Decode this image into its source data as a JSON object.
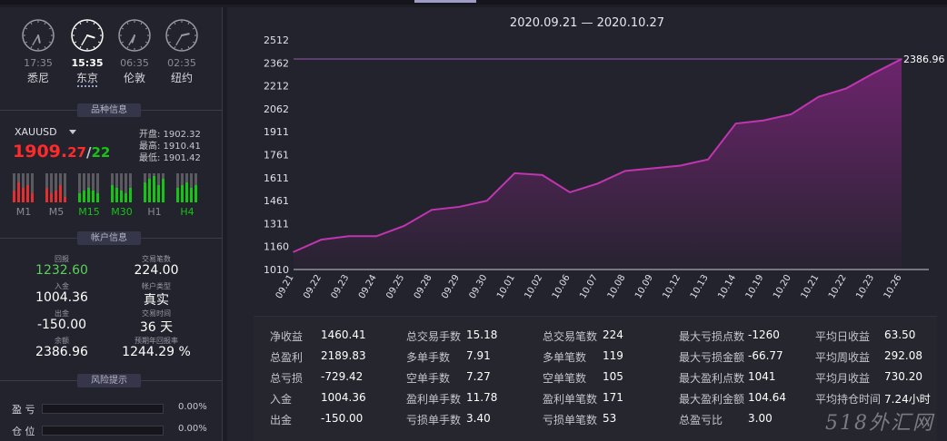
{
  "clocks": [
    {
      "time": "17:35",
      "city": "悉尼",
      "active": false,
      "hour": 17,
      "minute": 35
    },
    {
      "time": "15:35",
      "city": "东京",
      "active": true,
      "hour": 15,
      "minute": 35
    },
    {
      "time": "06:35",
      "city": "伦敦",
      "active": false,
      "hour": 6,
      "minute": 35
    },
    {
      "time": "02:35",
      "city": "纽约",
      "active": false,
      "hour": 2,
      "minute": 35
    }
  ],
  "quote": {
    "section_title": "品种信息",
    "symbol": "XAUUSD",
    "price_main": "1909.",
    "price_frac": "27",
    "price_slash": "/",
    "price_spread": "22",
    "open": "开盘: 1902.32",
    "high": "最高: 1910.41",
    "low": "最低: 1901.42"
  },
  "timeframes": [
    {
      "label": "M1",
      "color": "#8a8a96",
      "bars": [
        0.4,
        0.7,
        0.5,
        0.6,
        0.3
      ],
      "bar_color": "#e03030"
    },
    {
      "label": "M5",
      "color": "#8a8a96",
      "bars": [
        0.5,
        0.3,
        0.4,
        0.6,
        0.2
      ],
      "bar_color": "#e03030"
    },
    {
      "label": "M15",
      "color": "#16c316",
      "bars": [
        0.3,
        0.4,
        0.5,
        0.4,
        0.3
      ],
      "bar_color": "#16c316"
    },
    {
      "label": "M30",
      "color": "#16c316",
      "bars": [
        0.6,
        0.5,
        0.4,
        0.3,
        0.5
      ],
      "bar_color": "#16c316"
    },
    {
      "label": "H1",
      "color": "#8a8a96",
      "bars": [
        0.7,
        0.8,
        0.9,
        0.6,
        0.8
      ],
      "bar_color": "#16c316"
    },
    {
      "label": "H4",
      "color": "#16c316",
      "bars": [
        0.5,
        0.6,
        0.7,
        0.5,
        0.6
      ],
      "bar_color": "#16c316"
    }
  ],
  "account": {
    "section_title": "帐户信息",
    "items": [
      {
        "label": "回报",
        "value": "1232.60",
        "color": "#5ad05a"
      },
      {
        "label": "交易笔数",
        "value": "224.00",
        "color": "#ffffff"
      },
      {
        "label": "入金",
        "value": "1004.36",
        "color": "#ffffff"
      },
      {
        "label": "帐户类型",
        "value": "真实",
        "color": "#ffffff"
      },
      {
        "label": "出金",
        "value": "-150.00",
        "color": "#ffffff"
      },
      {
        "label": "交易时间",
        "value": "36 天",
        "color": "#ffffff"
      },
      {
        "label": "余额",
        "value": "2386.96",
        "color": "#ffffff"
      },
      {
        "label": "预期年回报率",
        "value": "1244.29 %",
        "color": "#ffffff"
      }
    ]
  },
  "risk": {
    "section_title": "风险提示",
    "rows": [
      {
        "label": "盈 亏",
        "pct": "0.00%"
      },
      {
        "label": "仓 位",
        "pct": "0.00%"
      }
    ]
  },
  "chart_data": {
    "type": "area",
    "title": "2020.09.21 — 2020.10.27",
    "x": [
      "09.21",
      "09.22",
      "09.23",
      "09.24",
      "09.25",
      "09.28",
      "09.29",
      "09.30",
      "10.01",
      "10.02",
      "10.06",
      "10.07",
      "10.08",
      "10.09",
      "10.12",
      "10.13",
      "10.14",
      "10.19",
      "10.20",
      "10.21",
      "10.22",
      "10.23",
      "10.26"
    ],
    "values": [
      1125,
      1205,
      1228,
      1228,
      1295,
      1400,
      1420,
      1460,
      1640,
      1628,
      1515,
      1572,
      1655,
      1672,
      1690,
      1730,
      1965,
      1985,
      2025,
      2140,
      2195,
      2295,
      2386.96
    ],
    "yticks": [
      1010,
      1160,
      1311,
      1461,
      1611,
      1761,
      1911,
      2062,
      2212,
      2362,
      2512
    ],
    "ylim": [
      1010,
      2512
    ],
    "last_label": "2386.96",
    "line_color": "#c035b0",
    "fill_color": "#7a2578"
  },
  "stats": [
    [
      {
        "k": "净收益",
        "v": "1460.41"
      },
      {
        "k": "总盈利",
        "v": "2189.83"
      },
      {
        "k": "总亏损",
        "v": "-729.42"
      },
      {
        "k": "入金",
        "v": "1004.36"
      },
      {
        "k": "出金",
        "v": "-150.00"
      }
    ],
    [
      {
        "k": "总交易手数",
        "v": "15.18"
      },
      {
        "k": "多单手数",
        "v": "7.91"
      },
      {
        "k": "空单手数",
        "v": "7.27"
      },
      {
        "k": "盈利单手数",
        "v": "11.78"
      },
      {
        "k": "亏损单手数",
        "v": "3.40"
      }
    ],
    [
      {
        "k": "总交易笔数",
        "v": "224"
      },
      {
        "k": "多单笔数",
        "v": "119"
      },
      {
        "k": "空单笔数",
        "v": "105"
      },
      {
        "k": "盈利单笔数",
        "v": "171"
      },
      {
        "k": "亏损单笔数",
        "v": "53"
      }
    ],
    [
      {
        "k": "最大亏损点数",
        "v": "-1260"
      },
      {
        "k": "最大亏损金额",
        "v": "-66.77"
      },
      {
        "k": "最大盈利点数",
        "v": "1041"
      },
      {
        "k": "最大盈利金额",
        "v": "104.64"
      },
      {
        "k": "总盈亏比",
        "v": "3.00"
      }
    ],
    [
      {
        "k": "平均日收益",
        "v": "63.50"
      },
      {
        "k": "平均周收益",
        "v": "292.08"
      },
      {
        "k": "平均月收益",
        "v": "730.20"
      },
      {
        "k": "平均持仓时间",
        "v": "7.24小时"
      },
      {
        "k": "",
        "v": ""
      }
    ]
  ],
  "watermark": "518外汇网"
}
